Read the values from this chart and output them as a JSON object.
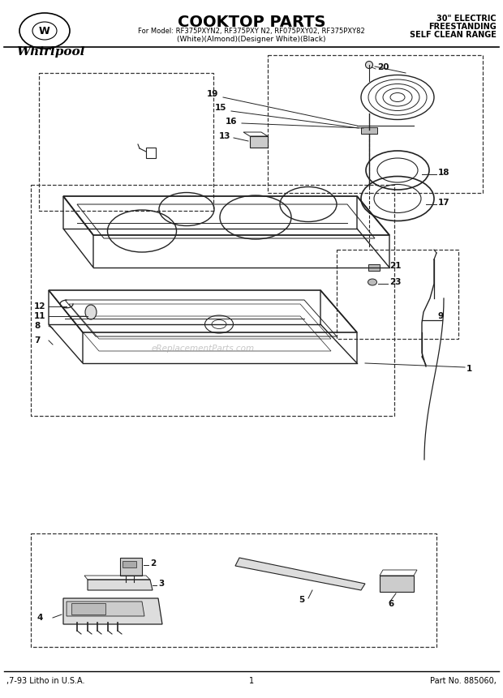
{
  "title": "COOKTOP PARTS",
  "subtitle_model": "For Model: RF375PXYN2, RF375PXY N2, RF075PXY02, RF375PXY82",
  "subtitle_colors": "(White)(Almond)(Designer White)(Black)",
  "header_right_line1": "30\" ELECTRIC",
  "header_right_line2": "FREESTANDING",
  "header_right_line3": "SELF CLEAN RANGE",
  "footer_left": ",7-93 Litho in U.S.A.",
  "footer_center": "1",
  "footer_right": "Part No. 885060,",
  "watermark": "eReplacementParts.com",
  "bg_color": "#ffffff",
  "line_color": "#222222",
  "text_color": "#111111"
}
